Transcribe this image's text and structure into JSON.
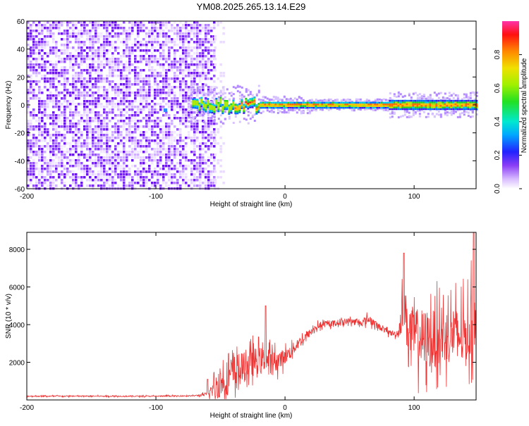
{
  "title": "YM08.2025.265.13.14.E29",
  "chart_data": [
    {
      "type": "heatmap",
      "xlabel": "Height of straight line (km)",
      "ylabel": "Frequency (Hz)",
      "xlim": [
        -200,
        148
      ],
      "ylim": [
        -60,
        60
      ],
      "xticks": [
        -200,
        -100,
        0,
        100
      ],
      "xtick_labels": [
        "-200",
        "-100",
        "0",
        "100"
      ],
      "yticks": [
        -60,
        -40,
        -20,
        0,
        20,
        40,
        60
      ],
      "ytick_labels": [
        "-60",
        "-40",
        "-20",
        "0",
        "20",
        "40",
        "60"
      ],
      "colorbar": {
        "label": "Normalized spectral amplitude",
        "range": [
          0,
          1
        ],
        "ticks": [
          0.0,
          0.2,
          0.4,
          0.6,
          0.8
        ],
        "tick_labels": [
          "0.0",
          "0.2",
          "0.4",
          "0.6",
          "0.8"
        ]
      },
      "noise_region_x": [
        -200,
        -55
      ],
      "signal_band_hz": [
        -5,
        5
      ]
    },
    {
      "type": "line",
      "xlabel": "Height of straight line (km)",
      "ylabel": "SNR (10 * v/v)",
      "xlim": [
        -200,
        148
      ],
      "ylim": [
        0,
        8900
      ],
      "xticks": [
        -200,
        -100,
        0,
        100
      ],
      "xtick_labels": [
        "-200",
        "-100",
        "0",
        "100"
      ],
      "yticks": [
        2000,
        4000,
        6000,
        8000
      ],
      "ytick_labels": [
        "2000",
        "4000",
        "6000",
        "8000"
      ],
      "color": "#ee3333",
      "series": [
        {
          "name": "SNR",
          "x": [
            -200,
            -150,
            -100,
            -70,
            -60,
            -52,
            -45,
            -40,
            -35,
            -30,
            -25,
            -20,
            -15,
            -10,
            -5,
            0,
            5,
            10,
            15,
            20,
            25,
            30,
            40,
            50,
            60,
            65,
            70,
            75,
            80,
            85,
            88,
            90,
            92,
            95,
            100,
            110,
            120,
            130,
            140,
            145,
            148
          ],
          "values": [
            200,
            200,
            200,
            220,
            300,
            800,
            1200,
            1400,
            1600,
            1800,
            2000,
            2100,
            2100,
            2000,
            2100,
            2300,
            2600,
            3000,
            3300,
            3600,
            3900,
            4000,
            4100,
            4200,
            4100,
            4300,
            4000,
            3800,
            3600,
            3500,
            3600,
            4400,
            5000,
            3800,
            3400,
            3200,
            3300,
            3500,
            3300,
            4200,
            3600
          ],
          "spread": [
            60,
            60,
            60,
            60,
            200,
            1500,
            1800,
            2000,
            1800,
            1500,
            1500,
            1400,
            1300,
            1200,
            1000,
            800,
            700,
            600,
            500,
            400,
            350,
            300,
            300,
            300,
            350,
            500,
            400,
            300,
            300,
            300,
            500,
            1800,
            2500,
            2800,
            3000,
            3200,
            3000,
            3000,
            3200,
            3500,
            3000
          ]
        }
      ],
      "peaks": [
        {
          "x": 92,
          "y": 7800
        },
        {
          "x": 146,
          "y": 8900
        },
        {
          "x": -60,
          "y": 1100
        },
        {
          "x": -15,
          "y": 5000
        }
      ]
    }
  ]
}
